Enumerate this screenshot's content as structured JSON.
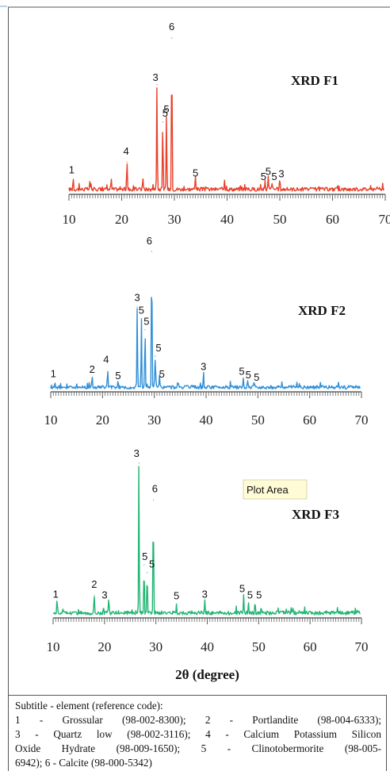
{
  "chart_data": [
    {
      "type": "line",
      "title": "XRD F1",
      "color": "#e8402a",
      "xlim": [
        10,
        70
      ],
      "xticks": [
        "10",
        "20",
        "30",
        "40",
        "50",
        "60",
        "70"
      ],
      "grid": false,
      "peaks": [
        {
          "x": 10.8,
          "y": 0.08,
          "label": "1"
        },
        {
          "x": 14.0,
          "y": 0.05,
          "label": ""
        },
        {
          "x": 18.0,
          "y": 0.07,
          "label": ""
        },
        {
          "x": 21.0,
          "y": 0.2,
          "label": "4"
        },
        {
          "x": 24.0,
          "y": 0.09,
          "label": ""
        },
        {
          "x": 26.7,
          "y": 0.7,
          "label": "3"
        },
        {
          "x": 27.8,
          "y": 0.46,
          "label": "5"
        },
        {
          "x": 28.5,
          "y": 0.48,
          "label": "5"
        },
        {
          "x": 29.5,
          "y": 1.0,
          "label": "6"
        },
        {
          "x": 34.0,
          "y": 0.07,
          "label": "5"
        },
        {
          "x": 39.5,
          "y": 0.07,
          "label": ""
        },
        {
          "x": 47.2,
          "y": 0.05,
          "label": "5"
        },
        {
          "x": 47.8,
          "y": 0.08,
          "label": "5"
        },
        {
          "x": 48.5,
          "y": 0.05,
          "label": "5"
        },
        {
          "x": 50.0,
          "y": 0.07,
          "label": "3"
        }
      ]
    },
    {
      "type": "line",
      "title": "XRD F2",
      "color": "#2f8fd8",
      "xlim": [
        10,
        70
      ],
      "xticks": [
        "10",
        "20",
        "30",
        "40",
        "50",
        "60",
        "70"
      ],
      "grid": false,
      "peaks": [
        {
          "x": 10.8,
          "y": 0.03,
          "label": "1"
        },
        {
          "x": 18.0,
          "y": 0.08,
          "label": "2"
        },
        {
          "x": 21.0,
          "y": 0.14,
          "label": "4"
        },
        {
          "x": 23.0,
          "y": 0.04,
          "label": "5"
        },
        {
          "x": 26.7,
          "y": 0.6,
          "label": "3"
        },
        {
          "x": 27.5,
          "y": 0.52,
          "label": "5"
        },
        {
          "x": 28.2,
          "y": 0.44,
          "label": "5"
        },
        {
          "x": 29.5,
          "y": 1.0,
          "label": "6"
        },
        {
          "x": 30.2,
          "y": 0.25,
          "label": "5"
        },
        {
          "x": 31.0,
          "y": 0.08,
          "label": "5"
        },
        {
          "x": 39.5,
          "y": 0.1,
          "label": "3"
        },
        {
          "x": 47.2,
          "y": 0.07,
          "label": "5"
        },
        {
          "x": 48.0,
          "y": 0.05,
          "label": "5"
        },
        {
          "x": 49.3,
          "y": 0.04,
          "label": "5"
        }
      ]
    },
    {
      "type": "line",
      "title": "XRD F3",
      "color": "#22b573",
      "xlim": [
        10,
        70
      ],
      "xticks": [
        "10",
        "20",
        "30",
        "40",
        "50",
        "60",
        "70"
      ],
      "xlabel": "2θ (degree)",
      "grid": false,
      "peaks": [
        {
          "x": 10.8,
          "y": 0.07,
          "label": "1"
        },
        {
          "x": 18.0,
          "y": 0.14,
          "label": "2"
        },
        {
          "x": 20.8,
          "y": 0.08,
          "label": "3"
        },
        {
          "x": 26.7,
          "y": 1.0,
          "label": "3"
        },
        {
          "x": 27.7,
          "y": 0.34,
          "label": "5"
        },
        {
          "x": 28.3,
          "y": 0.29,
          "label": "5"
        },
        {
          "x": 29.5,
          "y": 0.76,
          "label": "6"
        },
        {
          "x": 34.0,
          "y": 0.07,
          "label": "5"
        },
        {
          "x": 39.5,
          "y": 0.08,
          "label": "3"
        },
        {
          "x": 47.1,
          "y": 0.12,
          "label": "5"
        },
        {
          "x": 48.0,
          "y": 0.08,
          "label": "5"
        },
        {
          "x": 49.3,
          "y": 0.08,
          "label": "5"
        },
        {
          "x": 50.5,
          "y": 0.05,
          "label": ""
        }
      ]
    }
  ],
  "tooltip": "Plot Area",
  "caption": {
    "lines": [
      "Subtitle - element (reference code):",
      "1 - Grossular (98-002-8300); 2 - Portlandite (98-004-6333);",
      "3 - Quartz low (98-002-3116); 4 - Calcium Potassium Silicon",
      "Oxide Hydrate (98-009-1650); 5 - Clinotobermorite (98-005-",
      "6942); 6 - Calcite (98-000-5342)"
    ]
  }
}
